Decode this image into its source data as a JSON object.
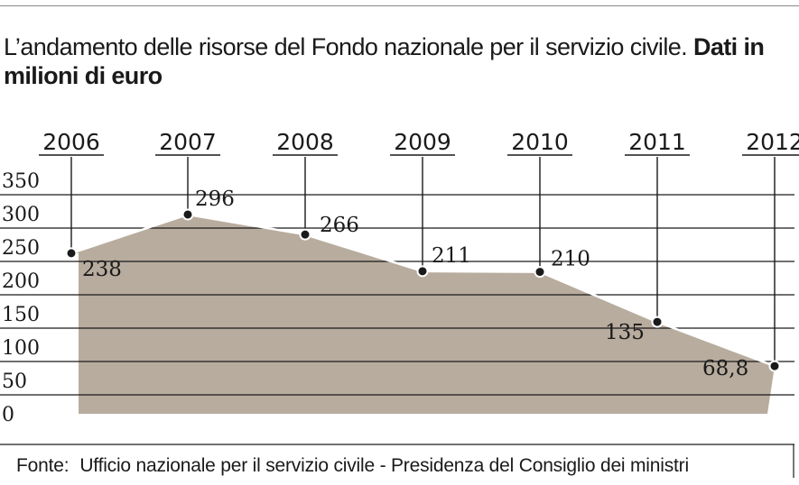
{
  "title": {
    "regular": "L’andamento delle risorse del Fondo nazionale per il servizio civile.",
    "bold": "Dati in milioni di euro"
  },
  "source": {
    "prefix": "Fonte:",
    "text": "Ufficio nazionale per il servizio civile - Presidenza del Consiglio dei ministri"
  },
  "chart_data": {
    "type": "area",
    "x": [
      "2006",
      "2007",
      "2008",
      "2009",
      "2010",
      "2011",
      "2012"
    ],
    "values": [
      238,
      296,
      266,
      211,
      210,
      135,
      68.8
    ],
    "value_labels": [
      "238",
      "296",
      "266",
      "211",
      "210",
      "135",
      "68,8"
    ],
    "yticks": [
      "0",
      "50",
      "100",
      "150",
      "200",
      "250",
      "300",
      "350"
    ],
    "ylim": [
      0,
      350
    ],
    "grid": true,
    "colors": {
      "fill": "#b8ac9e",
      "line": "#ffffff",
      "grid": "#1a1a1a",
      "marker_fill": "#1a1a1a",
      "marker_stroke": "#ffffff"
    }
  }
}
